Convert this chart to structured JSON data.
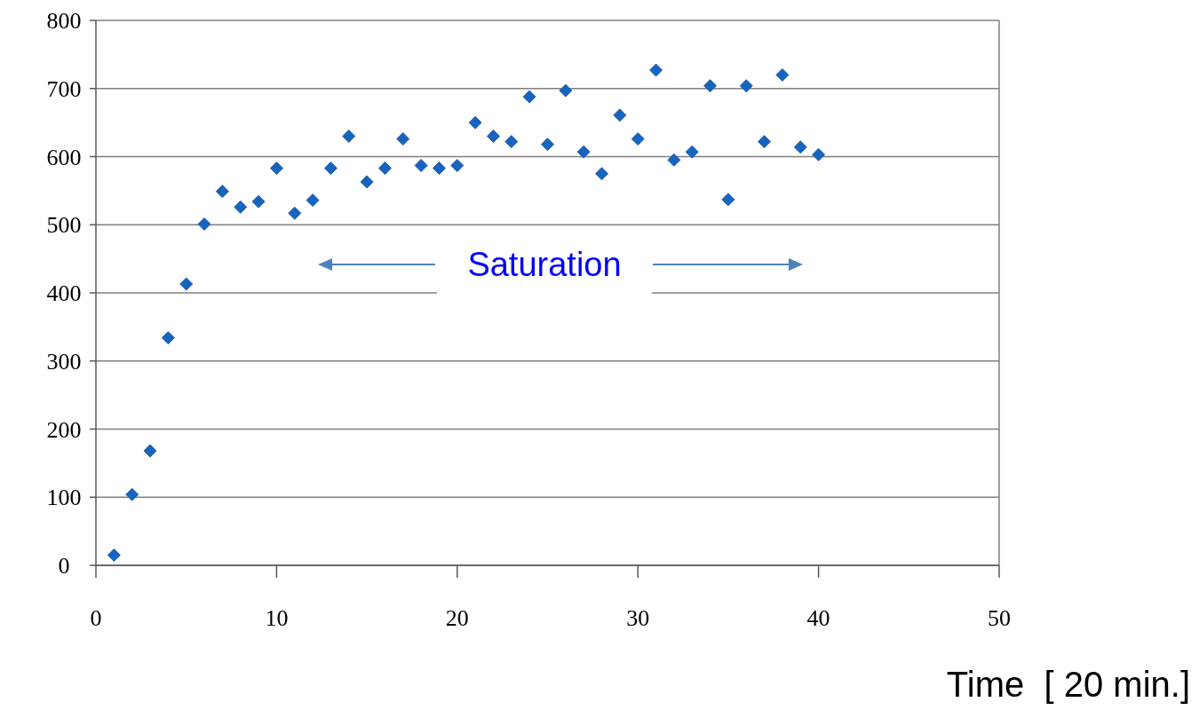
{
  "chart_data": {
    "type": "scatter",
    "xlabel": "Time  [ 20 min.]",
    "annotations": [
      "Saturation"
    ],
    "x": [
      1,
      2,
      3,
      4,
      5,
      6,
      7,
      8,
      9,
      10,
      11,
      12,
      13,
      14,
      15,
      16,
      17,
      18,
      19,
      20,
      21,
      22,
      23,
      24,
      25,
      26,
      27,
      28,
      29,
      30,
      31,
      32,
      33,
      34,
      35,
      36,
      37,
      38,
      39,
      40
    ],
    "series": [
      {
        "color": "#1565c0",
        "values": [
          15,
          104,
          168,
          334,
          413,
          501,
          549,
          526,
          534,
          583,
          517,
          536,
          583,
          630,
          563,
          583,
          626,
          587,
          583,
          587,
          650,
          630,
          622,
          688,
          618,
          697,
          607,
          575,
          661,
          626,
          727,
          595,
          607,
          704,
          537,
          704,
          622,
          720,
          614,
          603
        ]
      }
    ],
    "xlim": [
      0,
      50
    ],
    "xticks": [
      0,
      10,
      20,
      30,
      40,
      50
    ],
    "ylim": [
      0,
      800
    ],
    "yticks": [
      0,
      100,
      200,
      300,
      400,
      500,
      600,
      700,
      800
    ],
    "grid": "y",
    "marker": "diamond"
  }
}
